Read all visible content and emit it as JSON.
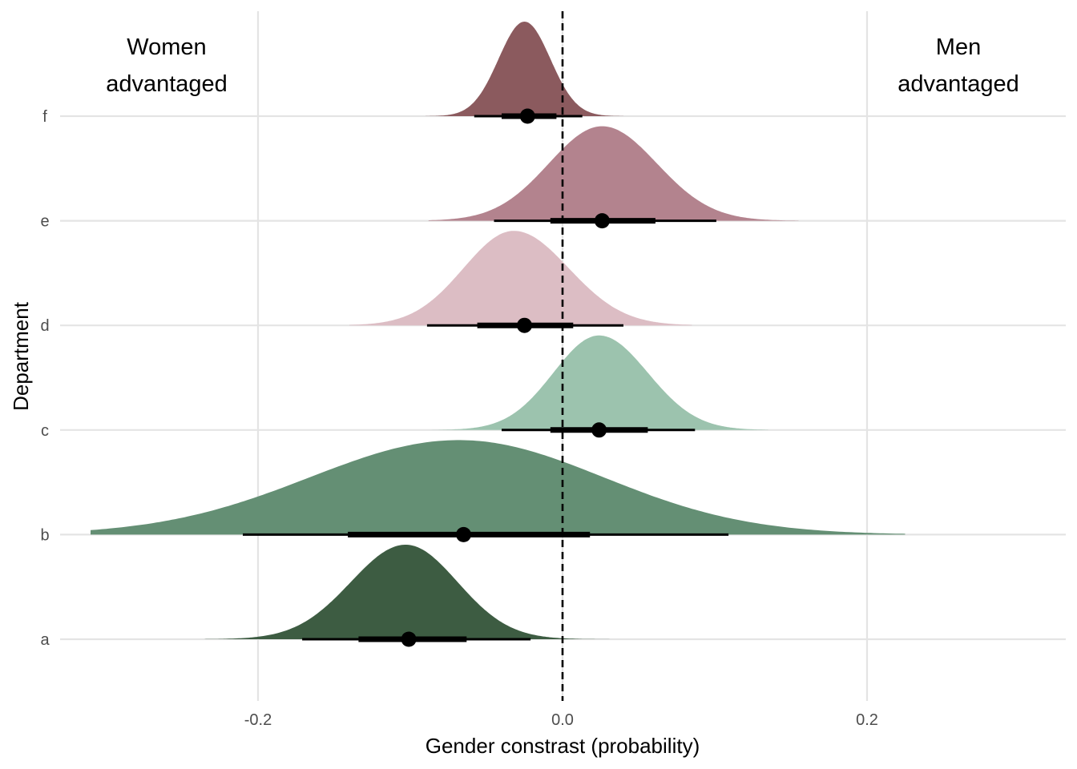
{
  "chart_data": {
    "type": "ridgeline",
    "xlabel": "Gender constrast (probability)",
    "ylabel": "Department",
    "xlim": [
      -0.33,
      0.33
    ],
    "x_ticks": [
      -0.2,
      0.0,
      0.2
    ],
    "x_tick_labels": [
      "-0.2",
      "0.0",
      "0.2"
    ],
    "reference_line": {
      "x": 0.0,
      "style": "dashed"
    },
    "grid": true,
    "annotations": [
      {
        "lines": [
          "Women",
          "advantaged"
        ],
        "x": -0.26,
        "position": "top-left"
      },
      {
        "lines": [
          "Men",
          "advantaged"
        ],
        "x": 0.26,
        "position": "top-right"
      }
    ],
    "series": [
      {
        "name": "a",
        "color": "#3d5c42",
        "point": -0.101,
        "interval_66": [
          -0.134,
          -0.063
        ],
        "interval_95": [
          -0.171,
          -0.021
        ],
        "range": [
          -0.235,
          0.043
        ],
        "peak": -0.103,
        "sd_left": 0.036,
        "sd_right": 0.034
      },
      {
        "name": "b",
        "color": "#648f74",
        "point": -0.065,
        "interval_66": [
          -0.141,
          0.018
        ],
        "interval_95": [
          -0.21,
          0.109
        ],
        "range": [
          -0.31,
          0.225
        ],
        "peak": -0.068,
        "sd_left": 0.098,
        "sd_right": 0.095
      },
      {
        "name": "c",
        "color": "#9cc3ae",
        "point": 0.024,
        "interval_66": [
          -0.008,
          0.056
        ],
        "interval_95": [
          -0.04,
          0.087
        ],
        "range": [
          -0.095,
          0.135
        ],
        "peak": 0.024,
        "sd_left": 0.03,
        "sd_right": 0.032
      },
      {
        "name": "d",
        "color": "#dcbdc4",
        "point": -0.025,
        "interval_66": [
          -0.056,
          0.007
        ],
        "interval_95": [
          -0.089,
          0.04
        ],
        "range": [
          -0.14,
          0.085
        ],
        "peak": -0.032,
        "sd_left": 0.033,
        "sd_right": 0.036
      },
      {
        "name": "e",
        "color": "#b3838e",
        "point": 0.026,
        "interval_66": [
          -0.008,
          0.061
        ],
        "interval_95": [
          -0.045,
          0.101
        ],
        "range": [
          -0.088,
          0.155
        ],
        "peak": 0.026,
        "sd_left": 0.035,
        "sd_right": 0.036
      },
      {
        "name": "f",
        "color": "#8b5a5e",
        "point": -0.023,
        "interval_66": [
          -0.04,
          -0.004
        ],
        "interval_95": [
          -0.058,
          0.013
        ],
        "range": [
          -0.09,
          0.04
        ],
        "peak": -0.025,
        "sd_left": 0.017,
        "sd_right": 0.017
      }
    ]
  }
}
